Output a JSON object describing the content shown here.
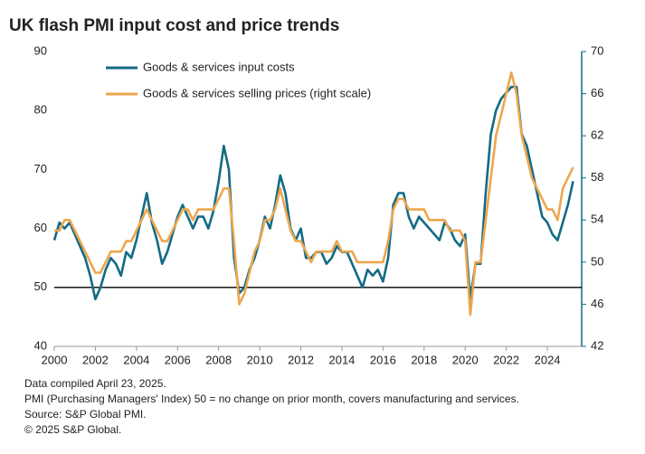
{
  "chart_data": {
    "type": "line",
    "title": "UK flash PMI input cost and price trends",
    "x": [
      2000,
      2000.25,
      2000.5,
      2000.75,
      2001,
      2001.25,
      2001.5,
      2001.75,
      2002,
      2002.25,
      2002.5,
      2002.75,
      2003,
      2003.25,
      2003.5,
      2003.75,
      2004,
      2004.25,
      2004.5,
      2004.75,
      2005,
      2005.25,
      2005.5,
      2005.75,
      2006,
      2006.25,
      2006.5,
      2006.75,
      2007,
      2007.25,
      2007.5,
      2007.75,
      2008,
      2008.25,
      2008.5,
      2008.75,
      2009,
      2009.25,
      2009.5,
      2009.75,
      2010,
      2010.25,
      2010.5,
      2010.75,
      2011,
      2011.25,
      2011.5,
      2011.75,
      2012,
      2012.25,
      2012.5,
      2012.75,
      2013,
      2013.25,
      2013.5,
      2013.75,
      2014,
      2014.25,
      2014.5,
      2014.75,
      2015,
      2015.25,
      2015.5,
      2015.75,
      2016,
      2016.25,
      2016.5,
      2016.75,
      2017,
      2017.25,
      2017.5,
      2017.75,
      2018,
      2018.25,
      2018.5,
      2018.75,
      2019,
      2019.25,
      2019.5,
      2019.75,
      2020,
      2020.25,
      2020.5,
      2020.75,
      2021,
      2021.25,
      2021.5,
      2021.75,
      2022,
      2022.25,
      2022.5,
      2022.75,
      2023,
      2023.25,
      2023.5,
      2023.75,
      2024,
      2024.25,
      2024.5,
      2024.75,
      2025,
      2025.25
    ],
    "series": [
      {
        "name": "Goods & services input costs",
        "color": "#136b86",
        "axis": "y",
        "values": [
          58,
          61,
          60,
          61,
          59,
          57,
          55,
          52,
          48,
          50,
          53,
          55,
          54,
          52,
          56,
          55,
          58,
          62,
          66,
          61,
          58,
          54,
          56,
          59,
          62,
          64,
          62,
          60,
          62,
          62,
          60,
          63,
          68,
          74,
          70,
          55,
          49,
          50,
          53,
          55,
          58,
          62,
          60,
          64,
          69,
          66,
          60,
          58,
          60,
          55,
          55,
          56,
          56,
          54,
          55,
          57,
          56,
          56,
          54,
          52,
          50,
          53,
          52,
          53,
          51,
          55,
          64,
          66,
          66,
          62,
          60,
          62,
          61,
          60,
          59,
          58,
          61,
          60,
          58,
          57,
          59,
          48,
          54,
          54,
          66,
          76,
          80,
          82,
          83,
          84,
          84,
          76,
          74,
          70,
          66,
          62,
          61,
          59,
          58,
          61,
          64,
          68
        ]
      },
      {
        "name": "Goods & services selling prices (right scale)",
        "color": "#eda74e",
        "axis": "y2",
        "values": [
          53,
          53,
          54,
          54,
          53,
          52,
          51,
          50,
          49,
          49,
          50,
          51,
          51,
          51,
          52,
          52,
          53,
          54,
          55,
          54,
          53,
          52,
          52,
          53,
          54,
          55,
          55,
          54,
          55,
          55,
          55,
          55,
          56,
          57,
          57,
          52,
          46,
          47,
          49,
          51,
          52,
          54,
          54,
          55,
          57,
          55,
          53,
          52,
          52,
          51,
          50,
          51,
          51,
          51,
          51,
          52,
          51,
          51,
          51,
          50,
          50,
          50,
          50,
          50,
          50,
          52,
          55,
          56,
          56,
          55,
          55,
          55,
          55,
          54,
          54,
          54,
          54,
          53,
          53,
          53,
          52,
          45,
          50,
          50,
          54,
          58,
          62,
          64,
          66,
          68,
          66,
          62,
          60,
          58,
          57,
          56,
          55,
          55,
          54,
          57,
          58,
          59
        ]
      }
    ],
    "xlim": [
      2000,
      2025.67
    ],
    "xticks": [
      2000,
      2002,
      2004,
      2006,
      2008,
      2010,
      2012,
      2014,
      2016,
      2018,
      2020,
      2022,
      2024
    ],
    "ylim": [
      40,
      90
    ],
    "yticks": [
      40,
      50,
      60,
      70,
      80,
      90
    ],
    "y2lim": [
      42,
      70
    ],
    "y2ticks": [
      42,
      46,
      50,
      54,
      58,
      62,
      66,
      70
    ],
    "reference_line": 50,
    "notes": [
      "Data compiled April 23, 2025.",
      "PMI (Purchasing Managers' Index) 50 = no change on prior month, covers manufacturing and services.",
      "Source: S&P Global PMI.",
      "© 2025 S&P Global."
    ]
  }
}
